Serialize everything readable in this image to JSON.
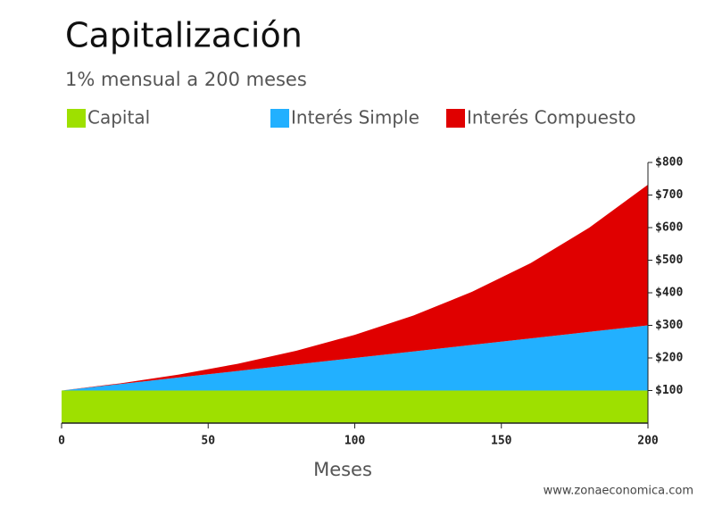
{
  "chart_data": {
    "type": "area",
    "stacked": true,
    "title": "Capitalización",
    "subtitle": "1% mensual a 200 meses",
    "x_label": "Meses",
    "source": "www.zonaeconomica.com",
    "x": [
      0,
      20,
      40,
      60,
      80,
      100,
      120,
      140,
      160,
      180,
      200
    ],
    "series": [
      {
        "name": "Capital",
        "color": "#9ee000",
        "values": [
          100,
          100,
          100,
          100,
          100,
          100,
          100,
          100,
          100,
          100,
          100
        ]
      },
      {
        "name": "Interés Simple",
        "color": "#22b0ff",
        "values": [
          0,
          20,
          40,
          60,
          80,
          100,
          120,
          140,
          160,
          180,
          200
        ]
      },
      {
        "name": "Interés Compuesto",
        "color": "#e00000",
        "values": [
          0,
          2,
          9,
          22,
          42,
          71,
          110,
          163,
          231,
          320,
          432
        ]
      }
    ],
    "xlim": [
      0,
      200
    ],
    "xticks": [
      0,
      50,
      100,
      150,
      200
    ],
    "ylim": [
      0,
      800
    ],
    "yticks": [
      {
        "value": 100,
        "label": "$100"
      },
      {
        "value": 200,
        "label": "$200"
      },
      {
        "value": 300,
        "label": "$300"
      },
      {
        "value": 400,
        "label": "$400"
      },
      {
        "value": 500,
        "label": "$500"
      },
      {
        "value": 600,
        "label": "$600"
      },
      {
        "value": 700,
        "label": "$700"
      },
      {
        "value": 800,
        "label": "$800"
      }
    ],
    "y_axis_side": "right"
  }
}
